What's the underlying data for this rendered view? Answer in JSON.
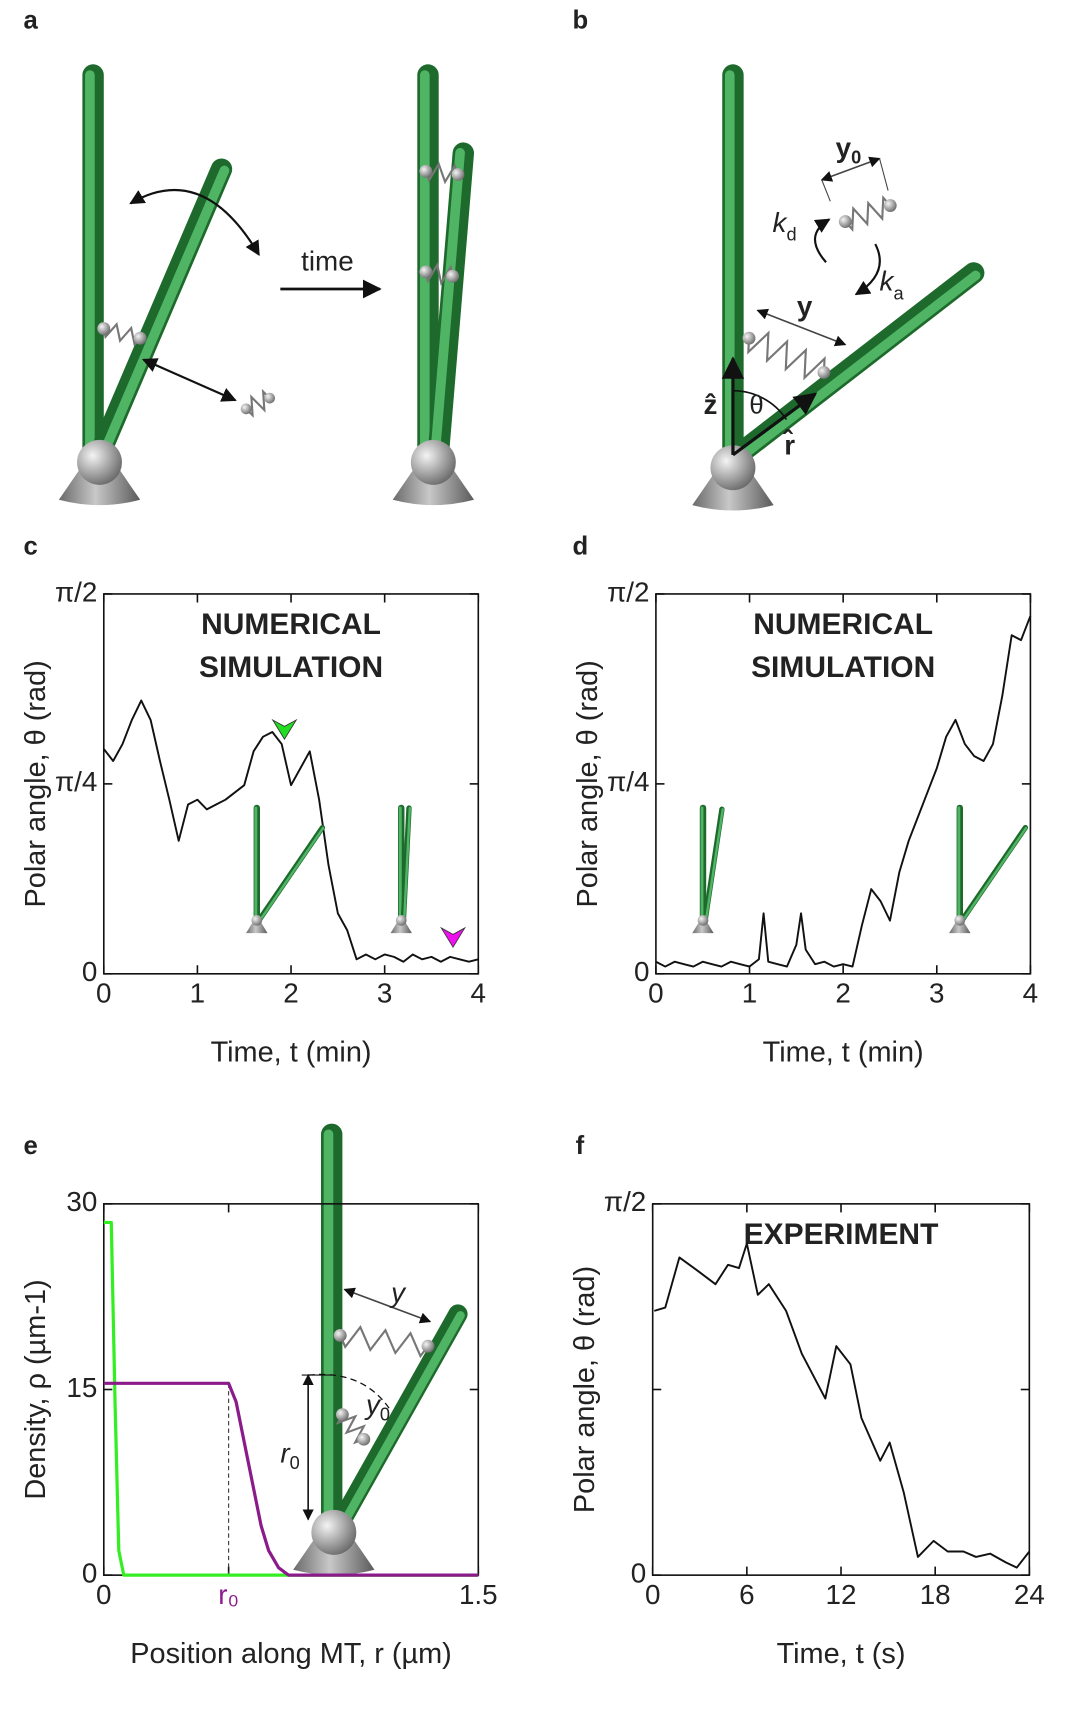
{
  "panel_labels": [
    "a",
    "b",
    "c",
    "d",
    "e",
    "f"
  ],
  "diagram_a": {
    "arrow_label": "time"
  },
  "diagram_b": {
    "y0": {
      "base": "y",
      "sub": "0"
    },
    "kd": {
      "base": "k",
      "sub": "d"
    },
    "ka": {
      "base": "k",
      "sub": "a"
    },
    "y": "y",
    "z_hat": "ẑ",
    "theta": "θ",
    "r_hat": "r̂"
  },
  "inset_e": {
    "y": "y",
    "y0": {
      "base": "y",
      "sub": "0"
    },
    "r0": {
      "base": "r",
      "sub": "0"
    }
  },
  "chart_data": [
    {
      "type": "line",
      "title_lines": [
        "NUMERICAL",
        "SIMULATION"
      ],
      "x_label": "Time, t (min)",
      "y_label": "Polar angle, θ (rad)",
      "x": [
        0,
        0.1,
        0.2,
        0.3,
        0.4,
        0.5,
        0.6,
        0.7,
        0.8,
        0.9,
        1.0,
        1.1,
        1.2,
        1.3,
        1.4,
        1.5,
        1.6,
        1.7,
        1.8,
        1.9,
        2.0,
        2.1,
        2.2,
        2.3,
        2.4,
        2.5,
        2.6,
        2.7,
        2.8,
        2.9,
        3.0,
        3.1,
        3.2,
        3.3,
        3.4,
        3.5,
        3.6,
        3.7,
        3.8,
        3.9,
        4.0
      ],
      "series": [
        {
          "color": "#111111",
          "values": [
            0.93,
            0.88,
            0.95,
            1.05,
            1.13,
            1.05,
            0.88,
            0.72,
            0.55,
            0.7,
            0.72,
            0.68,
            0.7,
            0.72,
            0.75,
            0.78,
            0.92,
            0.98,
            1.0,
            0.95,
            0.78,
            0.85,
            0.92,
            0.72,
            0.45,
            0.25,
            0.18,
            0.06,
            0.08,
            0.06,
            0.08,
            0.07,
            0.05,
            0.08,
            0.06,
            0.07,
            0.05,
            0.07,
            0.06,
            0.05,
            0.06
          ]
        }
      ],
      "markers": [
        {
          "x": 1.93,
          "y": 0.97,
          "color": "#22dd22"
        },
        {
          "x": 3.73,
          "y": 0.11,
          "color": "#ee11ee"
        }
      ],
      "xlim": [
        0,
        4
      ],
      "xticks": [
        0,
        1,
        2,
        3,
        4
      ],
      "ylim": [
        0,
        1.5708
      ],
      "yticks": [
        0,
        {
          "value": 0.7854,
          "label": "π/4"
        },
        {
          "value": 1.5708,
          "label": "π/2"
        }
      ]
    },
    {
      "type": "line",
      "title_lines": [
        "NUMERICAL",
        "SIMULATION"
      ],
      "x_label": "Time, t (min)",
      "y_label": "Polar angle, θ (rad)",
      "x": [
        0,
        0.1,
        0.2,
        0.3,
        0.4,
        0.5,
        0.6,
        0.7,
        0.8,
        0.9,
        1.0,
        1.1,
        1.15,
        1.2,
        1.3,
        1.4,
        1.5,
        1.55,
        1.6,
        1.7,
        1.8,
        1.9,
        2.0,
        2.1,
        2.2,
        2.3,
        2.4,
        2.5,
        2.6,
        2.7,
        2.8,
        2.9,
        3.0,
        3.1,
        3.2,
        3.3,
        3.4,
        3.5,
        3.6,
        3.7,
        3.8,
        3.9,
        4.0
      ],
      "series": [
        {
          "color": "#111111",
          "values": [
            0.05,
            0.03,
            0.05,
            0.04,
            0.03,
            0.05,
            0.04,
            0.03,
            0.05,
            0.04,
            0.03,
            0.06,
            0.25,
            0.05,
            0.04,
            0.03,
            0.12,
            0.25,
            0.1,
            0.04,
            0.05,
            0.03,
            0.04,
            0.03,
            0.2,
            0.35,
            0.3,
            0.22,
            0.42,
            0.55,
            0.65,
            0.75,
            0.85,
            0.98,
            1.05,
            0.95,
            0.9,
            0.88,
            0.95,
            1.15,
            1.4,
            1.38,
            1.48
          ]
        }
      ],
      "xlim": [
        0,
        4
      ],
      "xticks": [
        0,
        1,
        2,
        3,
        4
      ],
      "ylim": [
        0,
        1.5708
      ],
      "yticks": [
        0,
        {
          "value": 0.7854,
          "label": "π/4"
        },
        {
          "value": 1.5708,
          "label": "π/2"
        }
      ]
    },
    {
      "type": "line",
      "x_label": "Position along MT, r (µm)",
      "y_label": "Density, ρ (µm-1)",
      "series": [
        {
          "color": "#33ee22",
          "x": [
            0,
            0.03,
            0.045,
            0.06,
            0.08,
            1.5
          ],
          "values": [
            28.5,
            28.5,
            14,
            2,
            0,
            0
          ]
        },
        {
          "color": "#8b1a8b",
          "x": [
            0,
            0.5,
            0.53,
            0.56,
            0.6,
            0.63,
            0.66,
            0.7,
            0.74,
            1.5
          ],
          "values": [
            15.5,
            15.5,
            14,
            11,
            7,
            4,
            2,
            0.6,
            0,
            0
          ]
        }
      ],
      "xlim": [
        0,
        1.5
      ],
      "xticks": [
        0,
        {
          "value": 0.5,
          "label": "r₀",
          "color": "#8b1a8b"
        },
        1.5
      ],
      "ylim": [
        0,
        30
      ],
      "yticks": [
        0,
        15,
        30
      ]
    },
    {
      "type": "line",
      "title_lines": [
        "EXPERIMENT"
      ],
      "x_label": "Time, t (s)",
      "y_label": "Polar angle, θ (rad)",
      "x": [
        0.1,
        0.8,
        1.7,
        2.9,
        4.0,
        4.8,
        5.5,
        6.0,
        6.7,
        7.4,
        8.5,
        9.5,
        11.0,
        11.7,
        12.6,
        13.3,
        14.5,
        15.1,
        16.0,
        16.9,
        17.9,
        18.8,
        19.8,
        20.6,
        21.5,
        22.5,
        23.2,
        24.0
      ],
      "series": [
        {
          "color": "#111111",
          "values": [
            1.118,
            1.132,
            1.344,
            1.286,
            1.231,
            1.313,
            1.299,
            1.403,
            1.186,
            1.231,
            1.118,
            0.937,
            0.747,
            0.969,
            0.892,
            0.665,
            0.484,
            0.561,
            0.349,
            0.077,
            0.145,
            0.1,
            0.1,
            0.077,
            0.091,
            0.054,
            0.032,
            0.1
          ]
        }
      ],
      "xlim": [
        0,
        24
      ],
      "xticks": [
        0,
        6,
        12,
        18,
        24
      ],
      "ylim": [
        0,
        1.5708
      ],
      "yticks": [
        0,
        {
          "value": 1.5708,
          "label": "π/2"
        }
      ],
      "minor_yticks": [
        0.7854
      ]
    }
  ]
}
